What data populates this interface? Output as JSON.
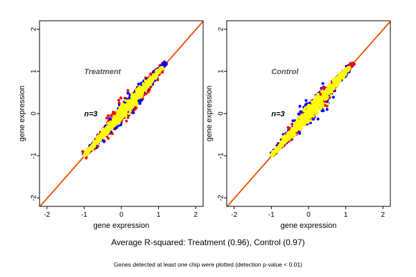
{
  "summary": "Average R-squared: Treatment (0.96), Control (0.97)",
  "footnote": "Genes detected at least one chip were plotted (detection p-value < 0.01)",
  "colors": {
    "red": "#ff0000",
    "blue": "#0000ff",
    "yellow": "#ffff00",
    "diagonal_orange": "#ff8c00",
    "diagonal_red": "#cc0000"
  },
  "chart_data": [
    {
      "type": "scatter",
      "title": "Treatment",
      "annotation": "n=3",
      "xlabel": "gene expression",
      "ylabel": "gene expression",
      "xlim": [
        -2.2,
        2.2
      ],
      "ylim": [
        -2.2,
        2.2
      ],
      "xticks": [
        -2,
        -1,
        0,
        1,
        2
      ],
      "yticks": [
        -2,
        -1,
        0,
        1,
        2
      ],
      "reference_line": "y = x",
      "series": [
        {
          "color": "red",
          "cloud": {
            "x_range": [
              -1.0,
              1.2
            ],
            "center": 0,
            "spread": 0.16
          }
        },
        {
          "color": "blue",
          "cloud": {
            "x_range": [
              -1.0,
              1.2
            ],
            "center": 0,
            "spread": 0.13
          }
        },
        {
          "color": "yellow",
          "cloud": {
            "x_range": [
              -1.0,
              1.1
            ],
            "center": 0,
            "spread": 0.09
          }
        }
      ]
    },
    {
      "type": "scatter",
      "title": "Control",
      "annotation": "n=3",
      "xlabel": "gene expression",
      "ylabel": "gene expression",
      "xlim": [
        -2.2,
        2.2
      ],
      "ylim": [
        -2.2,
        2.2
      ],
      "xticks": [
        -2,
        -1,
        0,
        1,
        2
      ],
      "yticks": [
        -2,
        -1,
        0,
        1,
        2
      ],
      "reference_line": "y = x",
      "series": [
        {
          "color": "blue",
          "cloud": {
            "x_range": [
              -1.0,
              1.2
            ],
            "center": 0,
            "spread": 0.15
          }
        },
        {
          "color": "red",
          "cloud": {
            "x_range": [
              -1.0,
              1.2
            ],
            "center": 0,
            "spread": 0.11
          }
        },
        {
          "color": "yellow",
          "cloud": {
            "x_range": [
              -1.0,
              1.1
            ],
            "center": 0,
            "spread": 0.1
          }
        }
      ]
    }
  ]
}
